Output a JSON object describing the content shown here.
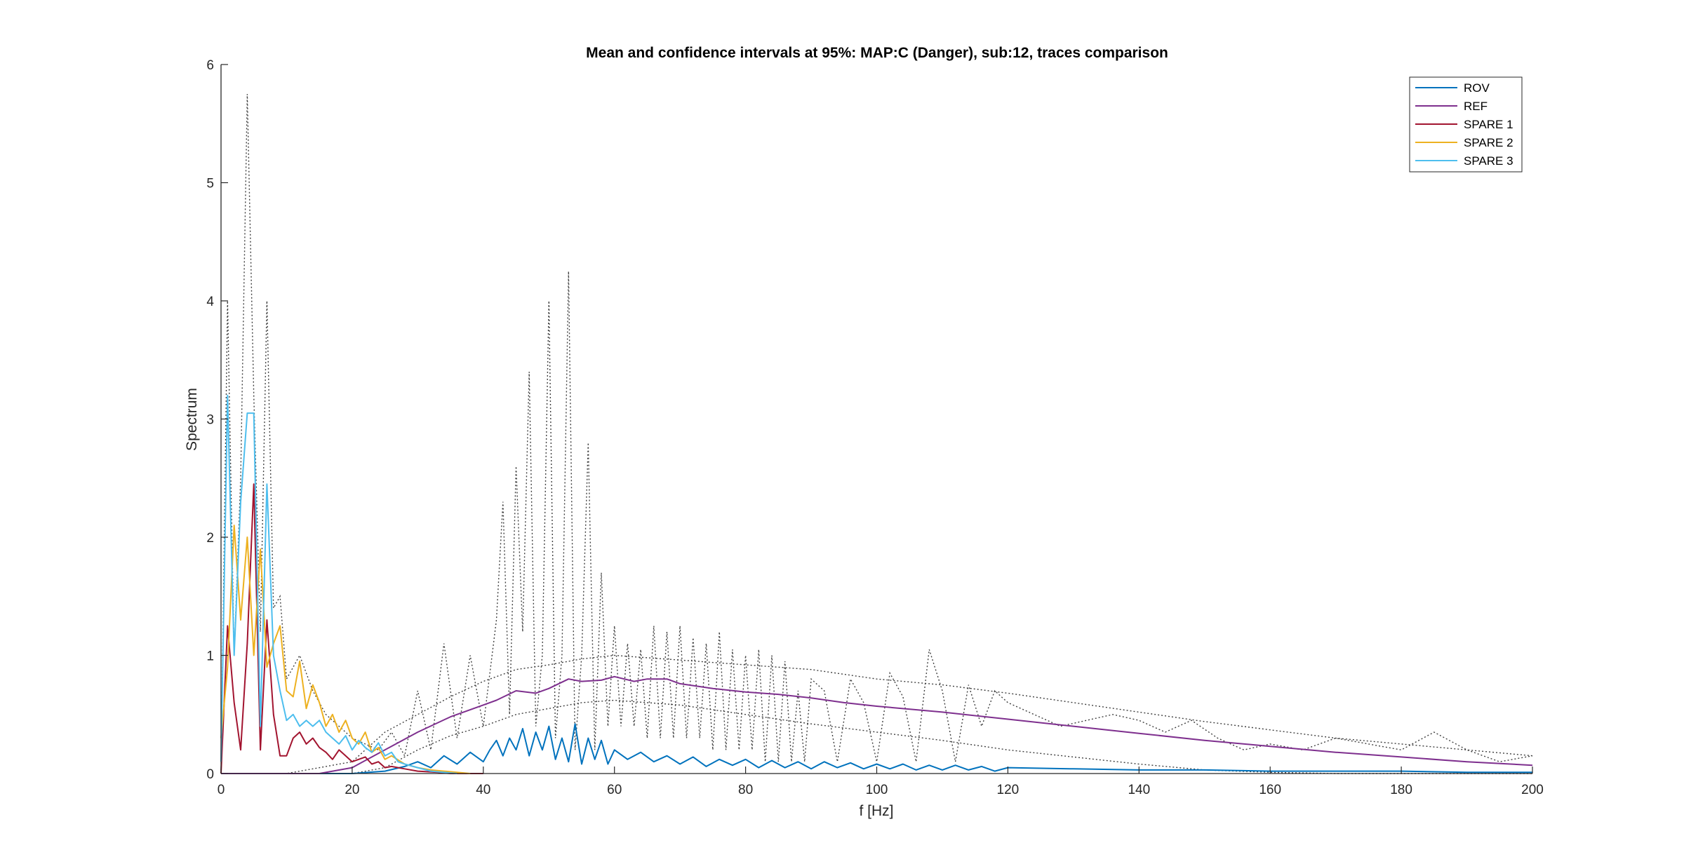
{
  "chart_data": {
    "type": "line",
    "title": "Mean and confidence intervals at 95%: MAP:C (Danger), sub:12, traces comparison",
    "xlabel": "f [Hz]",
    "ylabel": "Spectrum",
    "xlim": [
      0,
      200
    ],
    "ylim": [
      0,
      6
    ],
    "xticks": [
      0,
      20,
      40,
      60,
      80,
      100,
      120,
      140,
      160,
      180,
      200
    ],
    "yticks": [
      0,
      1,
      2,
      3,
      4,
      5,
      6
    ],
    "grid": false,
    "legend_position": "top-right",
    "colors": {
      "ROV": "#0072BD",
      "REF": "#7E2F8E",
      "SPARE 1": "#A2142F",
      "SPARE 2": "#EDB120",
      "SPARE 3": "#4DBEEE",
      "confidence": "#404040"
    },
    "series": [
      {
        "name": "ROV",
        "x": [
          0,
          20,
          25,
          28,
          30,
          32,
          34,
          36,
          38,
          40,
          41,
          42,
          43,
          44,
          45,
          46,
          47,
          48,
          49,
          50,
          51,
          52,
          53,
          54,
          55,
          56,
          57,
          58,
          59,
          60,
          62,
          64,
          66,
          68,
          70,
          72,
          74,
          76,
          78,
          80,
          82,
          84,
          86,
          88,
          90,
          92,
          94,
          96,
          98,
          100,
          102,
          104,
          106,
          108,
          110,
          112,
          114,
          116,
          118,
          120,
          130,
          140,
          150,
          160,
          170,
          180,
          190,
          200
        ],
        "y": [
          0,
          0,
          0.02,
          0.06,
          0.1,
          0.05,
          0.15,
          0.08,
          0.18,
          0.1,
          0.2,
          0.28,
          0.15,
          0.3,
          0.2,
          0.38,
          0.15,
          0.35,
          0.2,
          0.4,
          0.12,
          0.3,
          0.1,
          0.42,
          0.08,
          0.3,
          0.12,
          0.28,
          0.08,
          0.2,
          0.12,
          0.18,
          0.1,
          0.15,
          0.08,
          0.14,
          0.06,
          0.12,
          0.07,
          0.12,
          0.05,
          0.11,
          0.05,
          0.1,
          0.04,
          0.1,
          0.05,
          0.09,
          0.04,
          0.08,
          0.04,
          0.08,
          0.03,
          0.07,
          0.03,
          0.07,
          0.03,
          0.06,
          0.02,
          0.05,
          0.04,
          0.03,
          0.03,
          0.02,
          0.02,
          0.02,
          0.01,
          0.01
        ]
      },
      {
        "name": "REF",
        "x": [
          0,
          10,
          15,
          20,
          25,
          30,
          35,
          40,
          42,
          45,
          48,
          50,
          53,
          55,
          58,
          60,
          63,
          65,
          68,
          70,
          75,
          80,
          85,
          90,
          95,
          100,
          110,
          120,
          130,
          140,
          150,
          160,
          170,
          180,
          190,
          200
        ],
        "y": [
          0,
          0,
          0,
          0.05,
          0.2,
          0.35,
          0.48,
          0.58,
          0.62,
          0.7,
          0.68,
          0.72,
          0.8,
          0.78,
          0.79,
          0.82,
          0.78,
          0.8,
          0.8,
          0.76,
          0.72,
          0.69,
          0.67,
          0.64,
          0.6,
          0.57,
          0.52,
          0.46,
          0.4,
          0.34,
          0.28,
          0.23,
          0.18,
          0.14,
          0.1,
          0.07
        ]
      },
      {
        "name": "SPARE 1",
        "x": [
          0,
          1,
          2,
          3,
          4,
          5,
          6,
          7,
          8,
          9,
          10,
          11,
          12,
          13,
          14,
          15,
          16,
          17,
          18,
          19,
          20,
          21,
          22,
          23,
          24,
          25,
          26,
          28,
          30,
          33,
          35,
          40
        ],
        "y": [
          0,
          1.25,
          0.6,
          0.2,
          1.1,
          2.45,
          0.2,
          1.3,
          0.5,
          0.15,
          0.15,
          0.3,
          0.35,
          0.25,
          0.3,
          0.22,
          0.18,
          0.12,
          0.2,
          0.15,
          0.1,
          0.12,
          0.14,
          0.08,
          0.1,
          0.05,
          0.06,
          0.04,
          0.02,
          0.01,
          0.0,
          0
        ]
      },
      {
        "name": "SPARE 2",
        "x": [
          0,
          1,
          2,
          3,
          4,
          5,
          6,
          7,
          8,
          9,
          10,
          11,
          12,
          13,
          14,
          15,
          16,
          17,
          18,
          19,
          20,
          21,
          22,
          23,
          24,
          25,
          26,
          28,
          30,
          32,
          34,
          38
        ],
        "y": [
          0.3,
          0.9,
          2.1,
          1.3,
          2.0,
          1.0,
          1.9,
          0.9,
          1.1,
          1.25,
          0.7,
          0.65,
          0.95,
          0.55,
          0.75,
          0.6,
          0.4,
          0.5,
          0.35,
          0.45,
          0.3,
          0.25,
          0.35,
          0.18,
          0.22,
          0.12,
          0.15,
          0.08,
          0.05,
          0.03,
          0.02,
          0
        ]
      },
      {
        "name": "SPARE 3",
        "x": [
          0,
          1,
          2,
          3,
          4,
          5,
          6,
          7,
          8,
          9,
          10,
          11,
          12,
          13,
          14,
          15,
          16,
          17,
          18,
          19,
          20,
          21,
          22,
          23,
          24,
          25,
          26,
          27,
          28,
          30,
          32,
          36
        ],
        "y": [
          0.1,
          3.2,
          1.0,
          2.3,
          3.05,
          3.05,
          0.4,
          2.45,
          1.0,
          0.7,
          0.45,
          0.5,
          0.4,
          0.45,
          0.4,
          0.45,
          0.35,
          0.3,
          0.25,
          0.32,
          0.2,
          0.28,
          0.22,
          0.18,
          0.26,
          0.15,
          0.18,
          0.1,
          0.08,
          0.05,
          0.02,
          0
        ]
      }
    ],
    "confidence_bounds": [
      {
        "x": [
          0,
          1,
          2,
          3,
          4,
          5,
          6,
          7,
          8,
          9,
          10,
          12,
          14,
          16,
          18,
          20,
          22,
          24,
          26,
          28,
          30,
          32,
          34,
          36,
          38,
          40,
          42,
          43,
          44,
          45,
          46,
          47,
          48,
          49,
          50,
          51,
          52,
          53,
          54,
          55,
          56,
          57,
          58,
          59,
          60,
          61,
          62,
          63,
          64,
          65,
          66,
          67,
          68,
          69,
          70,
          71,
          72,
          73,
          74,
          75,
          76,
          77,
          78,
          79,
          80,
          81,
          82,
          83,
          84,
          85,
          86,
          87,
          88,
          89,
          90,
          92,
          94,
          96,
          98,
          100,
          102,
          104,
          106,
          108,
          110,
          112,
          114,
          116,
          118,
          120,
          124,
          128,
          132,
          136,
          140,
          144,
          148,
          152,
          156,
          160,
          165,
          170,
          175,
          180,
          185,
          190,
          195,
          200
        ],
        "y": [
          0,
          4.0,
          1.0,
          2.5,
          5.75,
          3.2,
          1.2,
          4.0,
          1.4,
          1.5,
          0.8,
          1.0,
          0.7,
          0.5,
          0.4,
          0.3,
          0.25,
          0.2,
          0.35,
          0.15,
          0.7,
          0.2,
          1.1,
          0.3,
          1.0,
          0.4,
          1.3,
          2.3,
          0.5,
          2.6,
          1.2,
          3.4,
          0.4,
          1.0,
          4.0,
          0.3,
          1.0,
          4.25,
          0.2,
          1.0,
          2.8,
          0.2,
          1.7,
          0.4,
          1.25,
          0.4,
          1.1,
          0.4,
          1.05,
          0.3,
          1.25,
          0.3,
          1.2,
          0.3,
          1.25,
          0.3,
          1.15,
          0.3,
          1.1,
          0.2,
          1.2,
          0.2,
          1.05,
          0.2,
          1.0,
          0.2,
          1.05,
          0.1,
          1.0,
          0.1,
          0.95,
          0.1,
          0.7,
          0.1,
          0.8,
          0.7,
          0.1,
          0.8,
          0.6,
          0.1,
          0.85,
          0.65,
          0.1,
          1.05,
          0.7,
          0.1,
          0.75,
          0.4,
          0.7,
          0.6,
          0.5,
          0.4,
          0.45,
          0.5,
          0.45,
          0.35,
          0.45,
          0.3,
          0.2,
          0.25,
          0.2,
          0.3,
          0.25,
          0.2,
          0.35,
          0.2,
          0.1,
          0.15
        ]
      },
      {
        "x": [
          0,
          10,
          20,
          25,
          30,
          35,
          40,
          45,
          50,
          55,
          60,
          65,
          70,
          80,
          90,
          100,
          110,
          120,
          130,
          140,
          150,
          160,
          170,
          180,
          190,
          200
        ],
        "y": [
          0,
          0,
          0.1,
          0.35,
          0.5,
          0.65,
          0.78,
          0.88,
          0.92,
          0.97,
          1.0,
          0.98,
          0.96,
          0.92,
          0.88,
          0.8,
          0.75,
          0.68,
          0.6,
          0.52,
          0.44,
          0.37,
          0.3,
          0.25,
          0.2,
          0.15
        ]
      },
      {
        "x": [
          0,
          10,
          20,
          25,
          30,
          35,
          40,
          45,
          50,
          55,
          60,
          65,
          70,
          80,
          90,
          100,
          110,
          120,
          130,
          140,
          150,
          160,
          170,
          180,
          190,
          200
        ],
        "y": [
          0,
          0,
          0,
          0.05,
          0.2,
          0.32,
          0.4,
          0.5,
          0.55,
          0.6,
          0.62,
          0.6,
          0.58,
          0.5,
          0.42,
          0.35,
          0.28,
          0.2,
          0.14,
          0.08,
          0.03,
          0.01,
          0,
          0,
          0,
          0
        ]
      }
    ]
  }
}
